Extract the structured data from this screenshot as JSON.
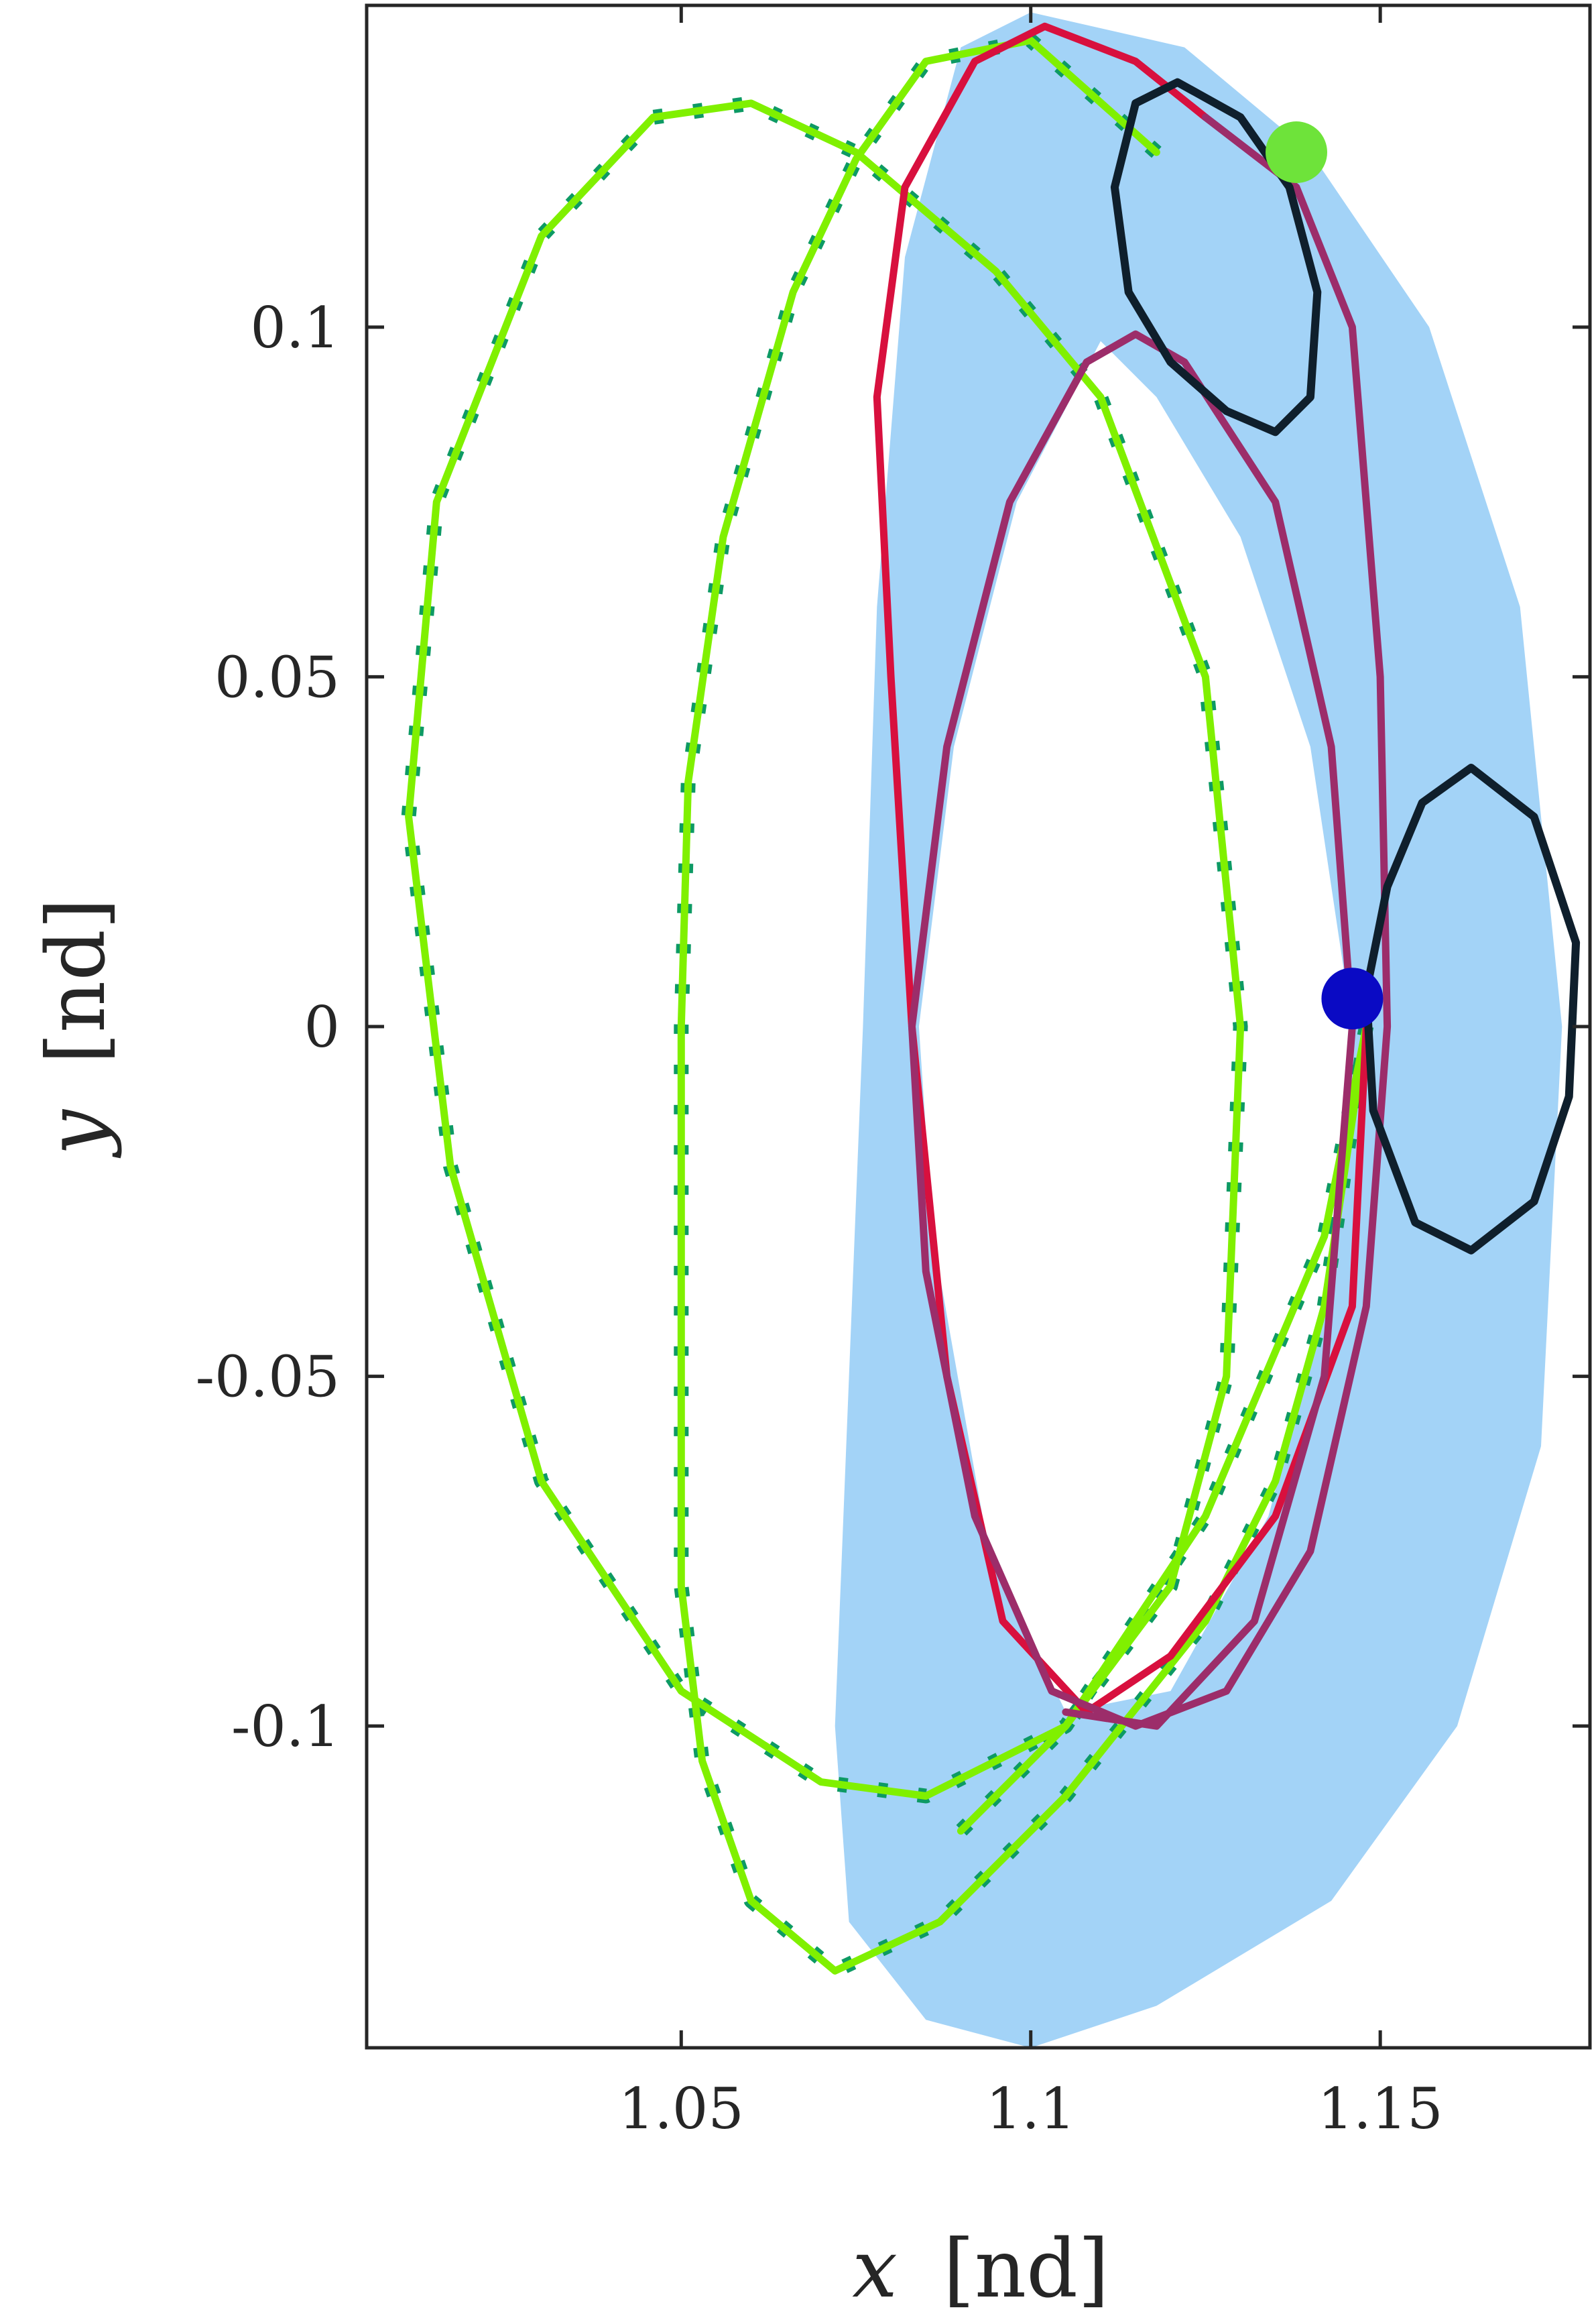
{
  "chart_data": {
    "type": "line",
    "title": "",
    "xlabel_var": "x",
    "xlabel_unit": "[nd]",
    "ylabel_var": "y",
    "ylabel_unit": "[nd]",
    "xlim": [
      1.005,
      1.18
    ],
    "ylim": [
      -0.146,
      0.146
    ],
    "xticks": [
      1.05,
      1.1,
      1.15
    ],
    "xtick_labels": [
      "1.05",
      "1.1",
      "1.15"
    ],
    "yticks": [
      -0.1,
      -0.05,
      0,
      0.05,
      0.1
    ],
    "ytick_labels": [
      "-0.1",
      "-0.05",
      "0",
      "0.05",
      "0.1"
    ],
    "grid": false,
    "colors": {
      "region_fill": "#a3d3f7",
      "green_orbit": "#80f000",
      "red_orbit": "#d8103e",
      "purple_orbit": "#9c2d6a",
      "dark_orbit": "#0f1f2c",
      "tick_marks": "#0d9a64",
      "start_point": "#6ee33a",
      "end_point": "#0a0ac4",
      "axis": "#262626"
    },
    "region": {
      "name": "shaded reachable region",
      "outer": [
        [
          1.1,
          0.145
        ],
        [
          1.122,
          0.14
        ],
        [
          1.14,
          0.125
        ],
        [
          1.157,
          0.1
        ],
        [
          1.17,
          0.06
        ],
        [
          1.176,
          0.0
        ],
        [
          1.173,
          -0.06
        ],
        [
          1.161,
          -0.1
        ],
        [
          1.143,
          -0.125
        ],
        [
          1.118,
          -0.14
        ],
        [
          1.1,
          -0.146
        ],
        [
          1.085,
          -0.142
        ],
        [
          1.074,
          -0.128
        ],
        [
          1.072,
          -0.1
        ],
        [
          1.074,
          -0.05
        ],
        [
          1.076,
          0.0
        ],
        [
          1.078,
          0.06
        ],
        [
          1.082,
          0.11
        ],
        [
          1.09,
          0.14
        ]
      ],
      "inner": [
        [
          1.11,
          0.098
        ],
        [
          1.118,
          0.09
        ],
        [
          1.13,
          0.07
        ],
        [
          1.14,
          0.04
        ],
        [
          1.146,
          0.0
        ],
        [
          1.142,
          -0.04
        ],
        [
          1.134,
          -0.07
        ],
        [
          1.12,
          -0.095
        ],
        [
          1.105,
          -0.098
        ],
        [
          1.094,
          -0.075
        ],
        [
          1.086,
          -0.03
        ],
        [
          1.084,
          0.0
        ],
        [
          1.089,
          0.04
        ],
        [
          1.098,
          0.075
        ]
      ]
    },
    "series": [
      {
        "name": "",
        "color_key": "green_orbit",
        "points": [
          [
            1.118,
            0.125
          ],
          [
            1.1,
            0.141
          ],
          [
            1.085,
            0.138
          ],
          [
            1.075,
            0.124
          ],
          [
            1.066,
            0.105
          ],
          [
            1.056,
            0.07
          ],
          [
            1.051,
            0.035
          ],
          [
            1.05,
            0.0
          ],
          [
            1.05,
            -0.04
          ],
          [
            1.05,
            -0.08
          ],
          [
            1.053,
            -0.105
          ],
          [
            1.06,
            -0.125
          ],
          [
            1.072,
            -0.135
          ],
          [
            1.087,
            -0.128
          ],
          [
            1.105,
            -0.11
          ],
          [
            1.125,
            -0.085
          ],
          [
            1.135,
            -0.065
          ],
          [
            1.142,
            -0.04
          ],
          [
            1.145,
            -0.02
          ],
          [
            1.148,
            0.0
          ]
        ]
      },
      {
        "name": "",
        "color_key": "green_orbit",
        "points": [
          [
            1.148,
            0.0
          ],
          [
            1.142,
            -0.03
          ],
          [
            1.125,
            -0.07
          ],
          [
            1.105,
            -0.1
          ],
          [
            1.085,
            -0.11
          ],
          [
            1.07,
            -0.108
          ],
          [
            1.05,
            -0.095
          ],
          [
            1.03,
            -0.065
          ],
          [
            1.017,
            -0.02
          ],
          [
            1.011,
            0.03
          ],
          [
            1.015,
            0.075
          ],
          [
            1.03,
            0.113
          ],
          [
            1.046,
            0.13
          ],
          [
            1.06,
            0.132
          ],
          [
            1.075,
            0.125
          ],
          [
            1.095,
            0.108
          ],
          [
            1.11,
            0.09
          ],
          [
            1.125,
            0.05
          ],
          [
            1.128,
            0.02
          ],
          [
            1.13,
            0.0
          ],
          [
            1.128,
            -0.05
          ],
          [
            1.12,
            -0.08
          ],
          [
            1.105,
            -0.1
          ],
          [
            1.09,
            -0.115
          ]
        ]
      },
      {
        "name": "",
        "color_key": "red_orbit",
        "points": [
          [
            1.148,
            0.0
          ],
          [
            1.146,
            -0.04
          ],
          [
            1.135,
            -0.07
          ],
          [
            1.12,
            -0.09
          ],
          [
            1.108,
            -0.098
          ],
          [
            1.096,
            -0.085
          ],
          [
            1.088,
            -0.05
          ],
          [
            1.083,
            0.0
          ],
          [
            1.08,
            0.05
          ],
          [
            1.078,
            0.09
          ],
          [
            1.082,
            0.12
          ],
          [
            1.092,
            0.138
          ],
          [
            1.102,
            0.143
          ],
          [
            1.115,
            0.138
          ],
          [
            1.125,
            0.13
          ]
        ]
      },
      {
        "name": "",
        "color_key": "purple_orbit",
        "points": [
          [
            1.125,
            0.13
          ],
          [
            1.138,
            0.12
          ],
          [
            1.146,
            0.1
          ],
          [
            1.15,
            0.05
          ],
          [
            1.151,
            0.0
          ],
          [
            1.148,
            -0.04
          ],
          [
            1.14,
            -0.075
          ],
          [
            1.128,
            -0.095
          ],
          [
            1.115,
            -0.1
          ],
          [
            1.103,
            -0.095
          ],
          [
            1.092,
            -0.07
          ],
          [
            1.085,
            -0.035
          ],
          [
            1.083,
            0.0
          ],
          [
            1.088,
            0.04
          ],
          [
            1.097,
            0.075
          ],
          [
            1.108,
            0.095
          ],
          [
            1.115,
            0.099
          ],
          [
            1.122,
            0.095
          ],
          [
            1.135,
            0.075
          ],
          [
            1.143,
            0.04
          ],
          [
            1.146,
            0.0
          ],
          [
            1.142,
            -0.05
          ],
          [
            1.132,
            -0.085
          ],
          [
            1.118,
            -0.1
          ],
          [
            1.105,
            -0.098
          ]
        ]
      },
      {
        "name": "",
        "color_key": "dark_orbit",
        "closed": true,
        "points": [
          [
            1.121,
            0.135
          ],
          [
            1.13,
            0.13
          ],
          [
            1.137,
            0.12
          ],
          [
            1.141,
            0.105
          ],
          [
            1.14,
            0.09
          ],
          [
            1.135,
            0.085
          ],
          [
            1.128,
            0.088
          ],
          [
            1.12,
            0.095
          ],
          [
            1.114,
            0.105
          ],
          [
            1.112,
            0.12
          ],
          [
            1.115,
            0.132
          ]
        ]
      },
      {
        "name": "",
        "color_key": "dark_orbit",
        "closed": true,
        "points": [
          [
            1.163,
            0.037
          ],
          [
            1.172,
            0.03
          ],
          [
            1.178,
            0.012
          ],
          [
            1.177,
            -0.01
          ],
          [
            1.172,
            -0.025
          ],
          [
            1.163,
            -0.032
          ],
          [
            1.155,
            -0.028
          ],
          [
            1.149,
            -0.012
          ],
          [
            1.148,
            0.005
          ],
          [
            1.151,
            0.02
          ],
          [
            1.156,
            0.032
          ]
        ]
      }
    ],
    "markers": [
      {
        "name": "",
        "color_key": "start_point",
        "x": 1.138,
        "y": 0.125
      },
      {
        "name": "",
        "color_key": "end_point",
        "x": 1.146,
        "y": 0.004
      }
    ]
  }
}
